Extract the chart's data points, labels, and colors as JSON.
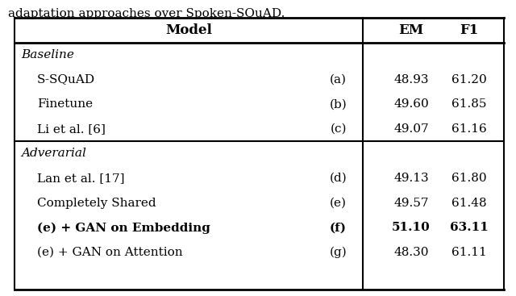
{
  "title": "adaptation approaches over Spoken-SQuAD.",
  "sections": [
    {
      "label": "Baseline",
      "rows": [
        {
          "model": "S-SQuAD",
          "tag": "(a)",
          "em": "48.93",
          "f1": "61.20",
          "bold": false
        },
        {
          "model": "Finetune",
          "tag": "(b)",
          "em": "49.60",
          "f1": "61.85",
          "bold": false
        },
        {
          "model": "Li et al. [6]",
          "tag": "(c)",
          "em": "49.07",
          "f1": "61.16",
          "bold": false
        }
      ]
    },
    {
      "label": "Adverarial",
      "rows": [
        {
          "model": "Lan et al. [17]",
          "tag": "(d)",
          "em": "49.13",
          "f1": "61.80",
          "bold": false
        },
        {
          "model": "Completely Shared",
          "tag": "(e)",
          "em": "49.57",
          "f1": "61.48",
          "bold": false
        },
        {
          "model": "(e) + GAN on Embedding",
          "tag": "(f)",
          "em": "51.10",
          "f1": "63.11",
          "bold": true
        },
        {
          "model": "(e) + GAN on Attention",
          "tag": "(g)",
          "em": "48.30",
          "f1": "61.11",
          "bold": false
        }
      ]
    }
  ],
  "fig_bg": "#ffffff",
  "font_size": 11.0,
  "header_font_size": 12.0
}
